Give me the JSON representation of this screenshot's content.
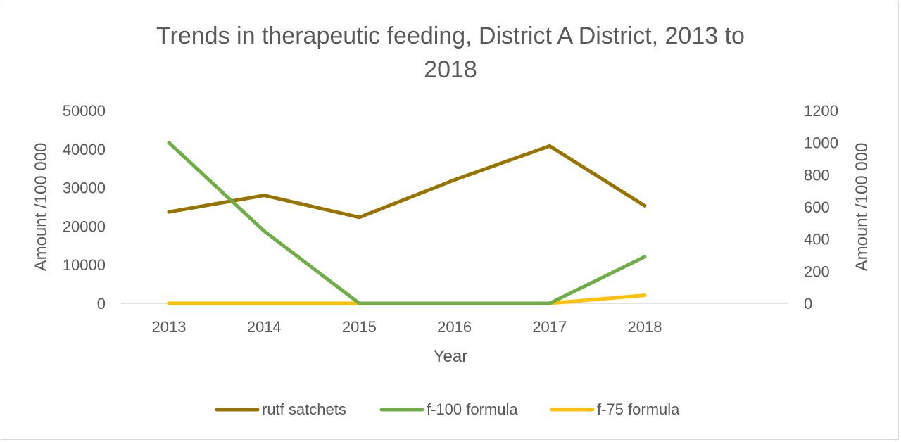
{
  "chart_data": {
    "type": "line",
    "title_lines": [
      "Trends in therapeutic feeding, District A District, 2013 to",
      "2018"
    ],
    "xlabel": "Year",
    "ylabel_left": "Amount /100 000",
    "ylabel_right": "Amount /100 000",
    "categories": [
      "2013",
      "2014",
      "2015",
      "2016",
      "2017",
      "2018"
    ],
    "y_left": {
      "min": 0,
      "max": 50000,
      "step": 10000,
      "ticks": [
        "50000",
        "40000",
        "30000",
        "20000",
        "10000",
        "0"
      ]
    },
    "y_right": {
      "min": 0,
      "max": 1200,
      "step": 200,
      "ticks": [
        "1200",
        "1000",
        "800",
        "600",
        "400",
        "200",
        "0"
      ]
    },
    "grid": false,
    "legend_position": "bottom",
    "series": [
      {
        "name": "rutf satchets",
        "axis": "left",
        "color": "#997300",
        "values": [
          23700,
          28000,
          22300,
          32000,
          40800,
          25300
        ]
      },
      {
        "name": "f-100 formula",
        "axis": "right",
        "color": "#70ad47",
        "values": [
          1000,
          450,
          0,
          0,
          0,
          290
        ]
      },
      {
        "name": "f-75 formula",
        "axis": "right",
        "color": "#ffc000",
        "values": [
          0,
          0,
          0,
          0,
          0,
          50
        ]
      }
    ]
  }
}
